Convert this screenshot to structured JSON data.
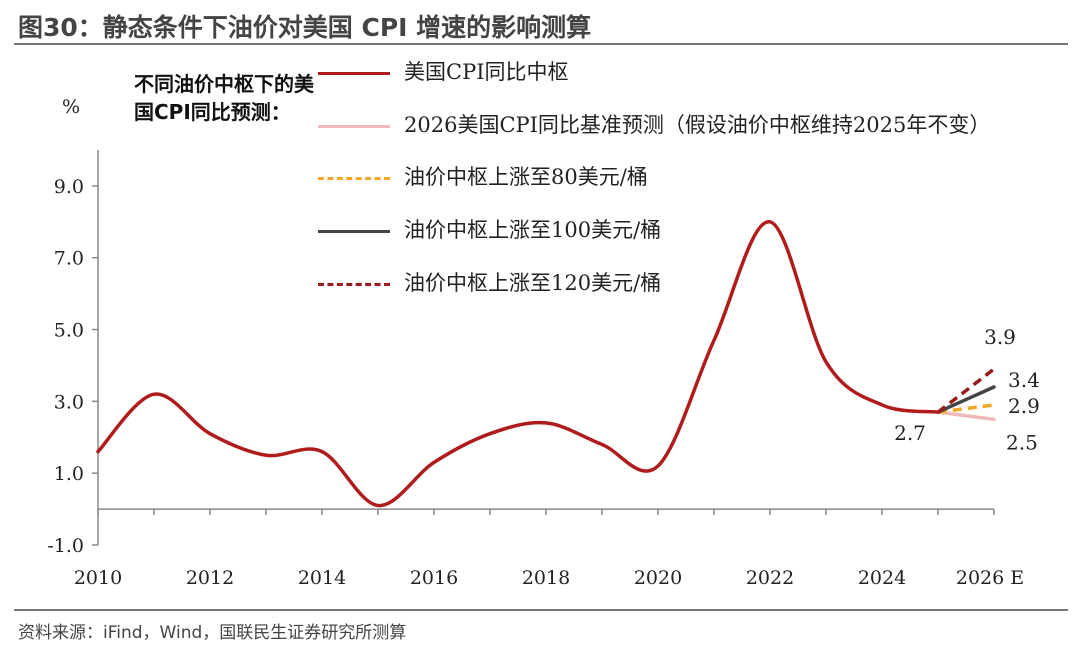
{
  "title": "图30：静态条件下油价对美国 CPI 增速的影响测算",
  "source": "资料来源：iFind，Wind，国联民生证券研究所测算",
  "chart_data": {
    "type": "line",
    "subtitle": "不同油价中枢下的美国CPI同比预测：",
    "ylabel": "%",
    "y_ticks": [
      -1.0,
      1.0,
      3.0,
      5.0,
      7.0,
      9.0
    ],
    "y_tick_labels": [
      "-1.0",
      "1.0",
      "3.0",
      "5.0",
      "7.0",
      "9.0"
    ],
    "ylim": [
      -1.0,
      10.0
    ],
    "x_ticks": [
      2010,
      2012,
      2014,
      2016,
      2018,
      2020,
      2022,
      2024,
      2026
    ],
    "x_tick_labels": [
      "2010",
      "2012",
      "2014",
      "2016",
      "2018",
      "2020",
      "2022",
      "2024",
      "2026 E"
    ],
    "xlim": [
      2010,
      2026
    ],
    "grid": false,
    "legend_position": "top",
    "series": [
      {
        "name": "美国CPI同比中枢",
        "color": "#b01c1c",
        "dash": "solid",
        "x": [
          2010,
          2011,
          2012,
          2013,
          2014,
          2015,
          2016,
          2017,
          2018,
          2019,
          2020,
          2021,
          2022,
          2023,
          2024,
          2025
        ],
        "y": [
          1.6,
          3.2,
          2.1,
          1.5,
          1.6,
          0.1,
          1.3,
          2.1,
          2.4,
          1.8,
          1.2,
          4.7,
          8.0,
          4.1,
          2.9,
          2.7
        ]
      },
      {
        "name": "2026美国CPI同比基准预测（假设油价中枢维持2025年不变）",
        "color": "#f0b8b8",
        "dash": "solid",
        "x": [
          2025,
          2026
        ],
        "y": [
          2.7,
          2.5
        ]
      },
      {
        "name": "油价中枢上涨至80美元/桶",
        "color": "#f5a623",
        "dash": "dashed",
        "x": [
          2025,
          2026
        ],
        "y": [
          2.7,
          2.9
        ]
      },
      {
        "name": "油价中枢上涨至100美元/桶",
        "color": "#444444",
        "dash": "solid",
        "x": [
          2025,
          2026
        ],
        "y": [
          2.7,
          3.4
        ]
      },
      {
        "name": "油价中枢上涨至120美元/桶",
        "color": "#9b1b1b",
        "dash": "dashed",
        "x": [
          2025,
          2026
        ],
        "y": [
          2.7,
          3.9
        ]
      }
    ],
    "data_labels": [
      {
        "text": "2.7",
        "x": 2025,
        "y": 2.7
      },
      {
        "text": "2.5",
        "x": 2026,
        "y": 2.5
      },
      {
        "text": "2.9",
        "x": 2026,
        "y": 2.9
      },
      {
        "text": "3.4",
        "x": 2026,
        "y": 3.4
      },
      {
        "text": "3.9",
        "x": 2026,
        "y": 3.9
      }
    ]
  }
}
